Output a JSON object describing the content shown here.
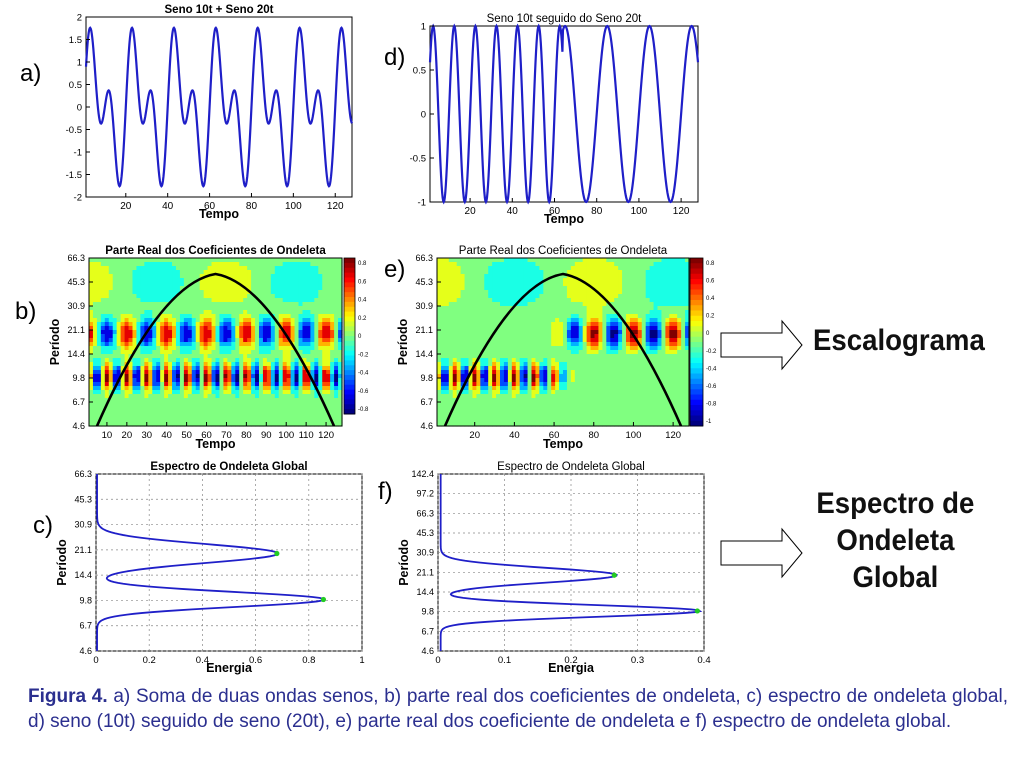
{
  "labels": {
    "a": "a)",
    "b": "b)",
    "c": "c)",
    "d": "d)",
    "e": "e)",
    "f": "f)"
  },
  "arrows": {
    "escalograma": "Escalograma",
    "espectro_line1": "Espectro de",
    "espectro_line2": "Ondeleta",
    "espectro_line3": "Global"
  },
  "caption": {
    "prefix": "Figura 4.",
    "text": "a) Soma de duas ondas senos, b) parte real dos coeficientes de ondeleta, c) espectro de ondeleta global, d) seno (10t) seguido de seno (20t), e) parte real dos coeficiente de ondeleta e f) espectro de ondeleta global."
  },
  "colors": {
    "line": "#1f1fc8",
    "caption": "#2b2f8f",
    "marker": "#22cc22",
    "cone": "#000000"
  },
  "chart_data": [
    {
      "id": "a",
      "type": "line",
      "title": "Seno 10t + Seno 20t",
      "xlabel": "Tempo",
      "ylabel": "",
      "xlim": [
        1,
        128
      ],
      "ylim": [
        -2,
        2
      ],
      "xticks": [
        20,
        40,
        60,
        80,
        100,
        120
      ],
      "yticks": [
        -2,
        -1.5,
        -1,
        -0.5,
        0,
        0.5,
        1,
        1.5,
        2
      ],
      "yticklabels": [
        "-2",
        "-1.5",
        "-1",
        "-0.5",
        "0",
        "0.5",
        "1",
        "1.5",
        "2"
      ],
      "function": "sin(2*pi*t/20) + sin(2*pi*t/10)"
    },
    {
      "id": "d",
      "type": "line",
      "title": "Seno 10t seguido do Seno 20t",
      "xlabel": "Tempo",
      "ylabel": "",
      "xlim": [
        1,
        128
      ],
      "ylim": [
        -1,
        1
      ],
      "xticks": [
        20,
        40,
        60,
        80,
        100,
        120
      ],
      "yticks": [
        -1,
        -0.5,
        0,
        0.5,
        1
      ],
      "yticklabels": [
        "-1",
        "-0.5",
        "0",
        "0.5",
        "1"
      ],
      "function": "sin(2*pi*t/10) for t<64; sin(2*pi*t/20) for t>=64"
    },
    {
      "id": "b",
      "type": "heatmap",
      "title": "Parte Real dos Coeficientes de Ondeleta",
      "xlabel": "Tempo",
      "ylabel": "Período",
      "xlim": [
        1,
        128
      ],
      "xticks": [
        10,
        20,
        30,
        40,
        50,
        60,
        70,
        80,
        90,
        100,
        110,
        120
      ],
      "yticklabels": [
        "66.3",
        "45.3",
        "30.9",
        "21.1",
        "14.4",
        "9.8",
        "6.7",
        "4.6"
      ],
      "colorbar": [
        0.8,
        0.6,
        0.4,
        0.2,
        0,
        -0.2,
        -0.4,
        -0.6,
        -0.8
      ],
      "colorbar_labels": [
        "0.8",
        "0.6",
        "0.4",
        "0.2",
        "0",
        "-0.2",
        "-0.4",
        "-0.6",
        "-0.8"
      ]
    },
    {
      "id": "e",
      "type": "heatmap",
      "title": "Parte Real dos Coeficientes de Ondeleta",
      "xlabel": "Tempo",
      "ylabel": "Período",
      "xlim": [
        1,
        128
      ],
      "xticks": [
        20,
        40,
        60,
        80,
        100,
        120
      ],
      "yticklabels": [
        "66.3",
        "45.3",
        "30.9",
        "21.1",
        "14.4",
        "9.8",
        "6.7",
        "4.6"
      ],
      "colorbar": [
        0.8,
        0.6,
        0.4,
        0.2,
        0,
        -0.2,
        -0.4,
        -0.6,
        -0.8,
        -1
      ],
      "colorbar_labels": [
        "0.8",
        "0.6",
        "0.4",
        "0.2",
        "0",
        "-0.2",
        "-0.4",
        "-0.6",
        "-0.8",
        "-1"
      ]
    },
    {
      "id": "c",
      "type": "line",
      "title": "Espectro de Ondeleta Global",
      "xlabel": "Energia",
      "ylabel": "Período",
      "xlim": [
        0,
        1
      ],
      "grid": true,
      "xticks": [
        0,
        0.2,
        0.4,
        0.6,
        0.8,
        1
      ],
      "xticklabels": [
        "0",
        "0.2",
        "0.4",
        "0.6",
        "0.8",
        "1"
      ],
      "yticklabels": [
        "66.3",
        "45.3",
        "30.9",
        "21.1",
        "14.4",
        "9.8",
        "6.7",
        "4.6"
      ],
      "peaks": [
        {
          "period": 20,
          "energy": 0.68
        },
        {
          "period": 10,
          "energy": 0.855
        }
      ]
    },
    {
      "id": "f",
      "type": "line",
      "title": "Espectro de Ondeleta Global",
      "xlabel": "Energia",
      "ylabel": "Período",
      "xlim": [
        0,
        0.4
      ],
      "grid": true,
      "xticks": [
        0,
        0.1,
        0.2,
        0.3,
        0.4
      ],
      "xticklabels": [
        "0",
        "0.1",
        "0.2",
        "0.3",
        "0.4"
      ],
      "yticklabels": [
        "142.4",
        "97.2",
        "66.3",
        "45.3",
        "30.9",
        "21.1",
        "14.4",
        "9.8",
        "6.7",
        "4.6"
      ],
      "peaks": [
        {
          "period": 20,
          "energy": 0.265
        },
        {
          "period": 10,
          "energy": 0.39
        }
      ]
    }
  ]
}
